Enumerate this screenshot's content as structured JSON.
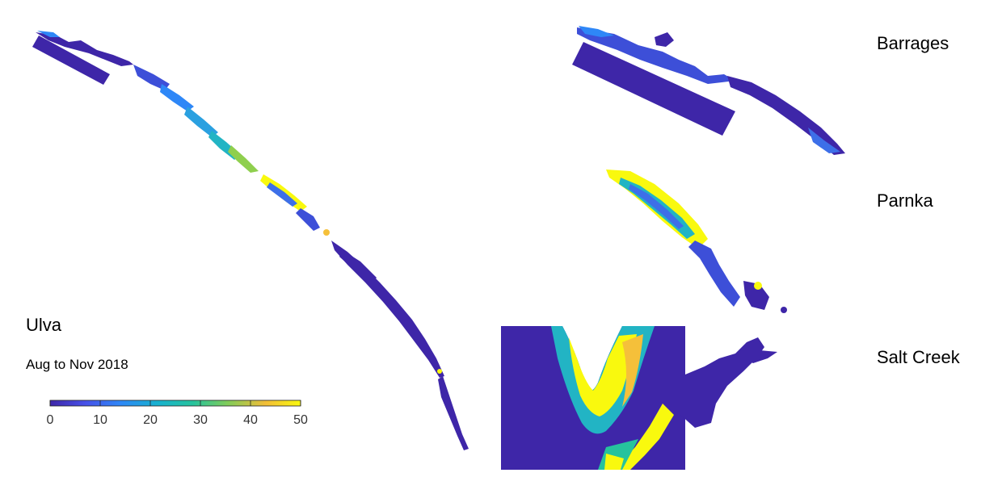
{
  "map": {
    "variable": "Ulva",
    "period": "Aug to Nov 2018",
    "insets": [
      {
        "label": "Barrages"
      },
      {
        "label": "Parnka"
      },
      {
        "label": "Salt Creek"
      }
    ]
  },
  "colorbar": {
    "ticks": [
      "0",
      "10",
      "20",
      "30",
      "40",
      "50"
    ],
    "min": 0,
    "max": 50,
    "colormap": [
      "#3e26a8",
      "#4751e8",
      "#2e87f7",
      "#17b2cf",
      "#26c39d",
      "#81cc59",
      "#f2bd37",
      "#f9f90e"
    ]
  },
  "colors": {
    "low": "#3e26a8",
    "midlow": "#3d6fe8",
    "mid": "#22b4c4",
    "midhigh": "#8fcf4e",
    "high": "#f9f90e",
    "amber": "#f5c03a"
  }
}
